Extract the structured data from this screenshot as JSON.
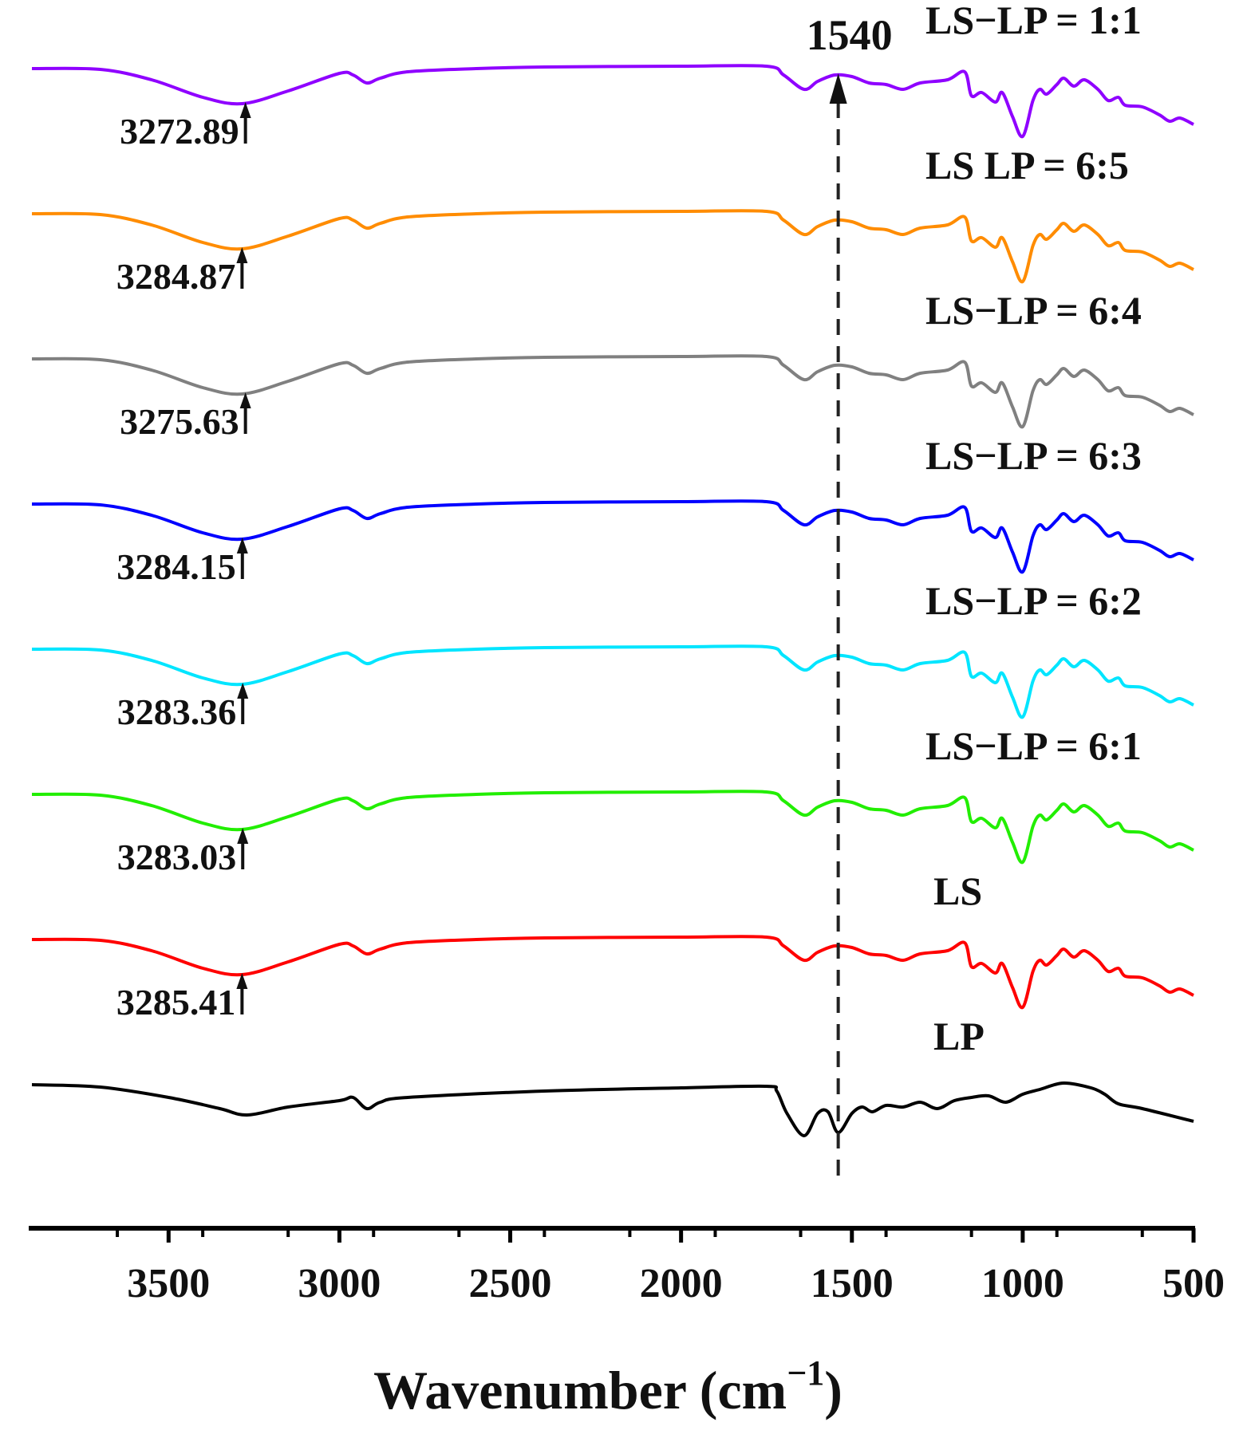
{
  "chart_data": {
    "type": "line",
    "title": "",
    "xlabel": "Wavenumber (cm",
    "xlabel_sup": "−1",
    "xlabel_close": ")",
    "ylabel": "",
    "xlim": [
      3900,
      500
    ],
    "x_reversed": true,
    "yaxis_visible": false,
    "grid": false,
    "tick_values": [
      3500,
      3000,
      2500,
      2000,
      1500,
      1000,
      500
    ],
    "tick_labels": [
      "3500",
      "3000",
      "2500",
      "2000",
      "1500",
      "1000",
      "500"
    ],
    "minor_tick_step": 250,
    "marker_line": {
      "x": 1540,
      "label": "1540",
      "style": "dashed",
      "arrow": "up"
    },
    "series": [
      {
        "name": "LS−LP = 1:1",
        "color": "#8f00ff",
        "offset": 7,
        "peak_label": "3272.89",
        "peak_x": 3275
      },
      {
        "name": "LS  LP = 6:5",
        "color": "#ff8c00",
        "offset": 6,
        "peak_label": "3284.87",
        "peak_x": 3285
      },
      {
        "name": "LS−LP = 6:4",
        "color": "#808080",
        "offset": 5,
        "peak_label": "3275.63",
        "peak_x": 3275
      },
      {
        "name": "LS−LP = 6:3",
        "color": "#0000ff",
        "offset": 4,
        "peak_label": "3284.15",
        "peak_x": 3284
      },
      {
        "name": "LS−LP = 6:2",
        "color": "#00e5ff",
        "offset": 3,
        "peak_label": "3283.36",
        "peak_x": 3283
      },
      {
        "name": "LS−LP = 6:1",
        "color": "#22ee00",
        "offset": 2,
        "peak_label": "3283.03",
        "peak_x": 3283
      },
      {
        "name": "LS",
        "color": "#ff0000",
        "offset": 1,
        "peak_label": "3285.41",
        "peak_x": 3285
      },
      {
        "name": "LP",
        "color": "#000000",
        "offset": 0,
        "peak_label": "",
        "peak_x": null
      }
    ],
    "profiles": {
      "LS_type": [
        [
          3900,
          0
        ],
        [
          3700,
          -1
        ],
        [
          3550,
          -14
        ],
        [
          3400,
          -36
        ],
        [
          3285,
          -44
        ],
        [
          3150,
          -28
        ],
        [
          3000,
          -6
        ],
        [
          2960,
          -8
        ],
        [
          2920,
          -18
        ],
        [
          2880,
          -12
        ],
        [
          2800,
          -4
        ],
        [
          2600,
          0
        ],
        [
          2400,
          2
        ],
        [
          2000,
          3
        ],
        [
          1750,
          3
        ],
        [
          1700,
          -8
        ],
        [
          1640,
          -26
        ],
        [
          1600,
          -16
        ],
        [
          1550,
          -8
        ],
        [
          1500,
          -10
        ],
        [
          1450,
          -18
        ],
        [
          1400,
          -20
        ],
        [
          1350,
          -26
        ],
        [
          1300,
          -18
        ],
        [
          1220,
          -14
        ],
        [
          1170,
          -4
        ],
        [
          1150,
          -34
        ],
        [
          1120,
          -30
        ],
        [
          1080,
          -42
        ],
        [
          1060,
          -30
        ],
        [
          1030,
          -60
        ],
        [
          1000,
          -85
        ],
        [
          970,
          -40
        ],
        [
          950,
          -26
        ],
        [
          930,
          -32
        ],
        [
          900,
          -20
        ],
        [
          880,
          -12
        ],
        [
          850,
          -22
        ],
        [
          820,
          -14
        ],
        [
          780,
          -26
        ],
        [
          750,
          -40
        ],
        [
          720,
          -36
        ],
        [
          700,
          -46
        ],
        [
          650,
          -48
        ],
        [
          600,
          -58
        ],
        [
          570,
          -66
        ],
        [
          540,
          -62
        ],
        [
          500,
          -70
        ]
      ],
      "LP": [
        [
          3900,
          0
        ],
        [
          3700,
          -3
        ],
        [
          3500,
          -16
        ],
        [
          3350,
          -30
        ],
        [
          3270,
          -38
        ],
        [
          3150,
          -28
        ],
        [
          3000,
          -20
        ],
        [
          2960,
          -16
        ],
        [
          2920,
          -30
        ],
        [
          2880,
          -22
        ],
        [
          2800,
          -16
        ],
        [
          2400,
          -8
        ],
        [
          2000,
          -4
        ],
        [
          1750,
          -2
        ],
        [
          1720,
          -8
        ],
        [
          1690,
          -36
        ],
        [
          1640,
          -64
        ],
        [
          1600,
          -36
        ],
        [
          1570,
          -34
        ],
        [
          1540,
          -60
        ],
        [
          1500,
          -36
        ],
        [
          1470,
          -28
        ],
        [
          1440,
          -34
        ],
        [
          1400,
          -26
        ],
        [
          1350,
          -28
        ],
        [
          1300,
          -22
        ],
        [
          1250,
          -30
        ],
        [
          1200,
          -20
        ],
        [
          1150,
          -16
        ],
        [
          1100,
          -14
        ],
        [
          1050,
          -22
        ],
        [
          1000,
          -12
        ],
        [
          950,
          -6
        ],
        [
          880,
          2
        ],
        [
          800,
          -4
        ],
        [
          760,
          -12
        ],
        [
          720,
          -24
        ],
        [
          650,
          -30
        ],
        [
          500,
          -46
        ]
      ]
    }
  }
}
